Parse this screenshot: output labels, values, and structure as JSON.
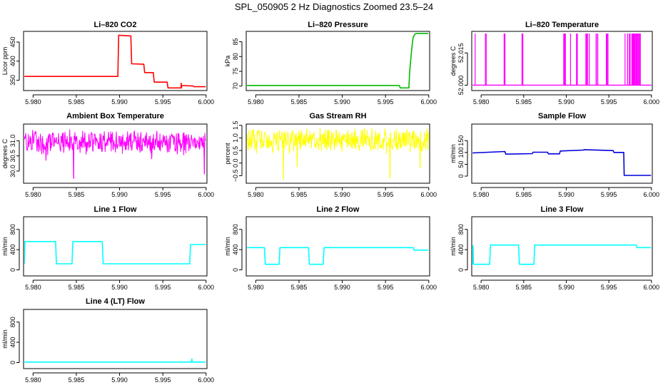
{
  "figure": {
    "title": "SPL_050905  2 Hz Diagnostics Zoomed 23.5–24"
  },
  "colors": {
    "red": "#ff0000",
    "green": "#00bb00",
    "magenta": "#ff00ff",
    "yellow": "#ffff00",
    "blue": "#0000dd",
    "cyan": "#00ffff",
    "axis": "#000000"
  },
  "chart_data": [
    {
      "type": "line",
      "title": "Li–820 CO2",
      "ylabel": "Licor ppm",
      "color": "red",
      "xlim": [
        5.9789,
        6.0001
      ],
      "ylim": [
        323,
        478
      ],
      "x_ticks": [
        "5.980",
        "5.985",
        "5.990",
        "5.995",
        "6.000"
      ],
      "y_ticks": [
        350,
        400,
        450
      ],
      "y_tick_labels": [
        "350",
        "400",
        "450"
      ],
      "series": [
        {
          "x": [
            5.979,
            5.9898,
            5.9899,
            5.9913,
            5.9914,
            5.9928,
            5.9929,
            5.9939,
            5.994,
            5.9955,
            5.9956,
            5.9971,
            5.99712,
            5.99715,
            5.9972,
            5.9985,
            5.9986,
            5.99995
          ],
          "y": [
            360,
            360,
            468,
            466,
            393,
            392,
            370,
            370,
            345,
            345,
            330,
            330,
            342,
            330,
            336,
            335,
            333,
            333
          ]
        }
      ]
    },
    {
      "type": "line",
      "title": "Li–820 Pressure",
      "ylabel": "kPa",
      "color": "green",
      "xlim": [
        5.9789,
        6.0001
      ],
      "ylim": [
        68.5,
        88.5
      ],
      "x_ticks": [
        "5.980",
        "5.985",
        "5.990",
        "5.995",
        "6.000"
      ],
      "y_ticks": [
        70,
        75,
        80,
        85
      ],
      "y_tick_labels": [
        "70",
        "75",
        "80",
        "85"
      ],
      "series": [
        {
          "x": [
            5.979,
            5.9966,
            5.9967,
            5.9977,
            5.9978,
            5.99795,
            5.9981,
            5.9982,
            5.9984,
            5.9986,
            5.99995
          ],
          "y": [
            70.2,
            70.2,
            69.4,
            69.4,
            75,
            80,
            84.5,
            86.5,
            87.6,
            87.8,
            87.8
          ]
        }
      ]
    },
    {
      "type": "line",
      "title": "Li–820 Temperature",
      "ylabel": "degrees C",
      "color": "magenta",
      "xlim": [
        5.9789,
        6.0001
      ],
      "ylim": [
        51.9975,
        52.025
      ],
      "x_ticks": [
        "5.980",
        "5.985",
        "5.990",
        "5.995",
        "6.000"
      ],
      "y_ticks": [
        52.0,
        52.015
      ],
      "y_tick_labels": [
        "52.000",
        "52.015"
      ],
      "baseline": 52.0,
      "peak": 52.024,
      "spikes": [
        5.9793,
        5.9805,
        5.9806,
        5.9827,
        5.9828,
        5.9848,
        5.98484,
        5.9849,
        5.9897,
        5.9898,
        5.98985,
        5.9899,
        5.9905,
        5.9912,
        5.99125,
        5.9913,
        5.9923,
        5.9924,
        5.9925,
        5.9927,
        5.9935,
        5.99355,
        5.9937,
        5.9947,
        5.99475,
        5.9948,
        5.9949,
        5.9969,
        5.9972,
        5.9974,
        5.9975,
        5.9977,
        5.9978,
        5.99785,
        5.9979,
        5.99795,
        5.998,
        5.99805,
        5.9981,
        5.9982,
        5.9983,
        5.9984,
        5.9985,
        5.99855,
        5.9986,
        5.9987
      ]
    },
    {
      "type": "line",
      "title": "Ambient Box Temperature",
      "ylabel": "degrees C",
      "color": "magenta",
      "xlim": [
        5.9789,
        6.0001
      ],
      "ylim": [
        29.6,
        31.55
      ],
      "x_ticks": [
        "5.980",
        "5.985",
        "5.990",
        "5.995",
        "6.000"
      ],
      "y_ticks": [
        30.0,
        30.5,
        31.0
      ],
      "y_tick_labels": [
        "30.0",
        "30.5",
        "31.0"
      ],
      "noise": {
        "center": 30.95,
        "amplitude": 0.45,
        "dips": [
          [
            5.9847,
            29.75
          ],
          [
            5.9998,
            29.9
          ],
          [
            5.9815,
            30.35
          ],
          [
            5.9937,
            30.4
          ]
        ]
      }
    },
    {
      "type": "line",
      "title": "Gas Stream RH",
      "ylabel": "percent",
      "color": "yellow",
      "xlim": [
        5.9789,
        6.0001
      ],
      "ylim": [
        -0.8,
        1.55
      ],
      "x_ticks": [
        "5.980",
        "5.985",
        "5.990",
        "5.995",
        "6.000"
      ],
      "y_ticks": [
        -0.5,
        0.0,
        0.5,
        1.0,
        1.5
      ],
      "y_tick_labels": [
        "−0.5",
        "0.0",
        "0.5",
        "1.0",
        "1.5"
      ],
      "noise": {
        "center": 0.9,
        "amplitude": 0.55,
        "dips": [
          [
            5.9832,
            -0.65
          ],
          [
            5.9955,
            -0.6
          ],
          [
            5.9848,
            -0.15
          ],
          [
            5.999,
            -0.2
          ]
        ]
      }
    },
    {
      "type": "line",
      "title": "Sample Flow",
      "ylabel": "ml/min",
      "color": "blue",
      "xlim": [
        5.9789,
        6.0001
      ],
      "ylim": [
        -30,
        220
      ],
      "x_ticks": [
        "5.980",
        "5.985",
        "5.990",
        "5.995",
        "6.000"
      ],
      "y_ticks": [
        0,
        50,
        100,
        150
      ],
      "y_tick_labels": [
        "0",
        "50",
        "100",
        "150"
      ],
      "series": [
        {
          "x": [
            5.979,
            5.9828,
            5.9829,
            5.986,
            5.9861,
            5.9878,
            5.9879,
            5.9892,
            5.9893,
            5.992,
            5.9921,
            5.9955,
            5.9956,
            5.99675,
            5.9968,
            5.99995
          ],
          "y": [
            98,
            104,
            93,
            95,
            101,
            101,
            94,
            94,
            106,
            110,
            112,
            108,
            100,
            100,
            3,
            3
          ]
        }
      ]
    },
    {
      "type": "line",
      "title": "Line 1 Flow",
      "ylabel": "ml/min",
      "color": "cyan",
      "xlim": [
        5.9789,
        6.0001
      ],
      "ylim": [
        -120,
        1050
      ],
      "x_ticks": [
        "5.980",
        "5.985",
        "5.990",
        "5.995",
        "6.000"
      ],
      "y_ticks": [
        0,
        400,
        800
      ],
      "y_tick_labels": [
        "0",
        "400",
        "800"
      ],
      "series": [
        {
          "x": [
            5.979,
            5.97905,
            5.9791,
            5.9826,
            5.9827,
            5.9845,
            5.9846,
            5.988,
            5.9881,
            5.9981,
            5.9982,
            5.99995
          ],
          "y": [
            120,
            560,
            560,
            560,
            120,
            120,
            560,
            560,
            120,
            120,
            500,
            500
          ]
        }
      ]
    },
    {
      "type": "line",
      "title": "Line 2 Flow",
      "ylabel": "ml/min",
      "color": "cyan",
      "xlim": [
        5.9789,
        6.0001
      ],
      "ylim": [
        -120,
        1050
      ],
      "x_ticks": [
        "5.980",
        "5.985",
        "5.990",
        "5.995",
        "6.000"
      ],
      "y_ticks": [
        0,
        400,
        800
      ],
      "y_tick_labels": [
        "0",
        "400",
        "800"
      ],
      "series": [
        {
          "x": [
            5.979,
            5.981,
            5.9811,
            5.9827,
            5.9828,
            5.9861,
            5.9862,
            5.9878,
            5.9879,
            5.9982,
            5.9983,
            5.99995
          ],
          "y": [
            440,
            440,
            110,
            110,
            440,
            440,
            110,
            110,
            440,
            440,
            390,
            390
          ]
        }
      ]
    },
    {
      "type": "line",
      "title": "Line 3 Flow",
      "ylabel": "ml/min",
      "color": "cyan",
      "xlim": [
        5.9789,
        6.0001
      ],
      "ylim": [
        -120,
        1050
      ],
      "x_ticks": [
        "5.980",
        "5.985",
        "5.990",
        "5.995",
        "6.000"
      ],
      "y_ticks": [
        0,
        400,
        800
      ],
      "y_tick_labels": [
        "0",
        "400",
        "800"
      ],
      "series": [
        {
          "x": [
            5.979,
            5.97905,
            5.9791,
            5.981,
            5.9811,
            5.9844,
            5.9845,
            5.9862,
            5.9863,
            5.9982,
            5.9983,
            5.99995
          ],
          "y": [
            120,
            480,
            110,
            110,
            490,
            490,
            110,
            110,
            490,
            490,
            440,
            440
          ]
        }
      ]
    },
    {
      "type": "line",
      "title": "Line 4 (LT) Flow",
      "ylabel": "ml/min",
      "color": "cyan",
      "xlim": [
        5.9789,
        6.0001
      ],
      "ylim": [
        -120,
        1050
      ],
      "x_ticks": [
        "5.980",
        "5.985",
        "5.990",
        "5.995",
        "6.000"
      ],
      "y_ticks": [
        0,
        400,
        800
      ],
      "y_tick_labels": [
        "0",
        "400",
        "800"
      ],
      "series": [
        {
          "x": [
            5.979,
            5.9983,
            5.99835,
            5.9984,
            5.99845,
            5.99995
          ],
          "y": [
            10,
            10,
            70,
            15,
            10,
            10
          ]
        }
      ]
    }
  ]
}
